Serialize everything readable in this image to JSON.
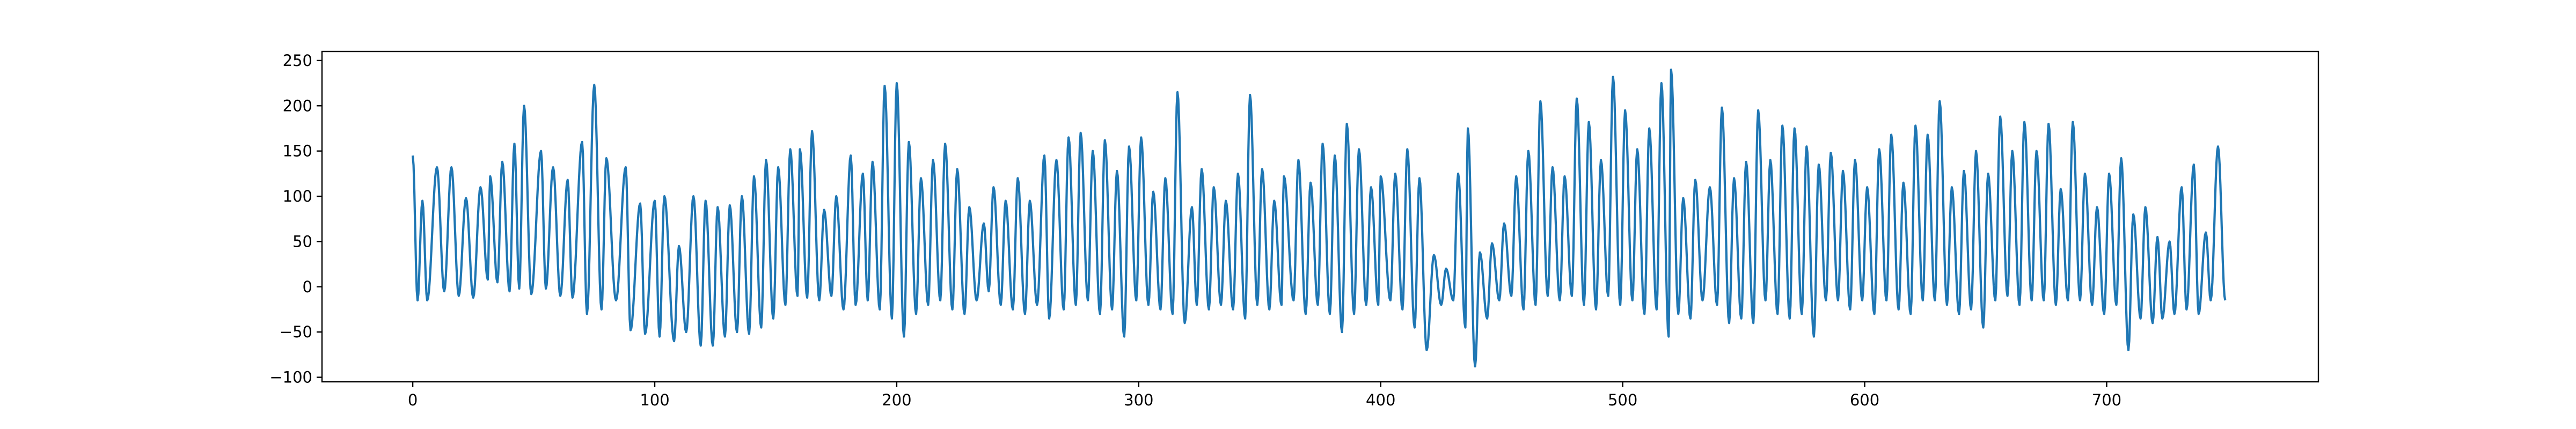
{
  "chart_data": {
    "type": "line",
    "title": "",
    "xlabel": "",
    "ylabel": "",
    "xlim": [
      -37.5,
      787.5
    ],
    "ylim": [
      -105,
      260
    ],
    "x_ticks": [
      0,
      100,
      200,
      300,
      400,
      500,
      600,
      700
    ],
    "y_ticks": [
      -100,
      -50,
      0,
      50,
      100,
      150,
      200,
      250
    ],
    "x_tick_labels": [
      "0",
      "100",
      "200",
      "300",
      "400",
      "500",
      "600",
      "700"
    ],
    "y_tick_labels": [
      "−100",
      "−50",
      "0",
      "50",
      "100",
      "150",
      "200",
      "250"
    ],
    "grid": false,
    "legend": "none",
    "series": [
      {
        "color": "#1f77b4",
        "x_start": 0,
        "x_end": 749,
        "peaks": [
          [
            0,
            145
          ],
          [
            4,
            95
          ],
          [
            10,
            132
          ],
          [
            16,
            132
          ],
          [
            22,
            98
          ],
          [
            28,
            110
          ],
          [
            32,
            122
          ],
          [
            37,
            138
          ],
          [
            42,
            158
          ],
          [
            46,
            200
          ],
          [
            53,
            150
          ],
          [
            58,
            132
          ],
          [
            64,
            118
          ],
          [
            70,
            160
          ],
          [
            75,
            223
          ],
          [
            80,
            142
          ],
          [
            88,
            132
          ],
          [
            94,
            92
          ],
          [
            100,
            95
          ],
          [
            104,
            100
          ],
          [
            110,
            45
          ],
          [
            116,
            100
          ],
          [
            121,
            95
          ],
          [
            126,
            88
          ],
          [
            131,
            90
          ],
          [
            136,
            100
          ],
          [
            141,
            122
          ],
          [
            146,
            140
          ],
          [
            151,
            132
          ],
          [
            156,
            152
          ],
          [
            160,
            152
          ],
          [
            165,
            172
          ],
          [
            170,
            85
          ],
          [
            175,
            100
          ],
          [
            181,
            145
          ],
          [
            186,
            125
          ],
          [
            190,
            138
          ],
          [
            195,
            222
          ],
          [
            200,
            225
          ],
          [
            205,
            160
          ],
          [
            210,
            120
          ],
          [
            215,
            140
          ],
          [
            220,
            158
          ],
          [
            225,
            130
          ],
          [
            230,
            88
          ],
          [
            236,
            70
          ],
          [
            240,
            110
          ],
          [
            245,
            95
          ],
          [
            250,
            120
          ],
          [
            255,
            95
          ],
          [
            261,
            145
          ],
          [
            266,
            140
          ],
          [
            271,
            165
          ],
          [
            276,
            170
          ],
          [
            281,
            150
          ],
          [
            286,
            162
          ],
          [
            291,
            128
          ],
          [
            296,
            155
          ],
          [
            301,
            165
          ],
          [
            306,
            105
          ],
          [
            311,
            120
          ],
          [
            316,
            215
          ],
          [
            322,
            88
          ],
          [
            326,
            130
          ],
          [
            331,
            110
          ],
          [
            336,
            95
          ],
          [
            341,
            125
          ],
          [
            346,
            212
          ],
          [
            351,
            130
          ],
          [
            356,
            95
          ],
          [
            360,
            122
          ],
          [
            366,
            140
          ],
          [
            371,
            115
          ],
          [
            376,
            158
          ],
          [
            381,
            145
          ],
          [
            386,
            180
          ],
          [
            391,
            152
          ],
          [
            396,
            110
          ],
          [
            400,
            122
          ],
          [
            406,
            125
          ],
          [
            411,
            152
          ],
          [
            416,
            120
          ],
          [
            422,
            35
          ],
          [
            427,
            20
          ],
          [
            432,
            125
          ],
          [
            436,
            175
          ],
          [
            441,
            38
          ],
          [
            446,
            48
          ],
          [
            451,
            70
          ],
          [
            456,
            122
          ],
          [
            461,
            150
          ],
          [
            466,
            205
          ],
          [
            471,
            132
          ],
          [
            476,
            122
          ],
          [
            481,
            208
          ],
          [
            486,
            182
          ],
          [
            491,
            140
          ],
          [
            496,
            232
          ],
          [
            501,
            195
          ],
          [
            506,
            152
          ],
          [
            511,
            175
          ],
          [
            516,
            225
          ],
          [
            520,
            240
          ],
          [
            525,
            98
          ],
          [
            530,
            118
          ],
          [
            536,
            110
          ],
          [
            541,
            198
          ],
          [
            546,
            120
          ],
          [
            551,
            138
          ],
          [
            556,
            195
          ],
          [
            561,
            140
          ],
          [
            566,
            178
          ],
          [
            571,
            175
          ],
          [
            576,
            155
          ],
          [
            581,
            135
          ],
          [
            586,
            148
          ],
          [
            591,
            128
          ],
          [
            596,
            140
          ],
          [
            601,
            110
          ],
          [
            606,
            152
          ],
          [
            611,
            168
          ],
          [
            616,
            115
          ],
          [
            621,
            178
          ],
          [
            626,
            168
          ],
          [
            631,
            205
          ],
          [
            636,
            110
          ],
          [
            641,
            128
          ],
          [
            646,
            150
          ],
          [
            651,
            125
          ],
          [
            656,
            188
          ],
          [
            661,
            150
          ],
          [
            666,
            182
          ],
          [
            671,
            150
          ],
          [
            676,
            180
          ],
          [
            681,
            108
          ],
          [
            686,
            182
          ],
          [
            691,
            125
          ],
          [
            696,
            88
          ],
          [
            701,
            125
          ],
          [
            706,
            142
          ],
          [
            711,
            80
          ],
          [
            716,
            88
          ],
          [
            721,
            55
          ],
          [
            726,
            50
          ],
          [
            731,
            110
          ],
          [
            736,
            135
          ],
          [
            741,
            60
          ],
          [
            746,
            155
          ]
        ],
        "troughs": [
          [
            2,
            -15
          ],
          [
            6,
            -15
          ],
          [
            13,
            -5
          ],
          [
            19,
            -10
          ],
          [
            25,
            -12
          ],
          [
            31,
            8
          ],
          [
            35,
            5
          ],
          [
            40,
            -5
          ],
          [
            44,
            -2
          ],
          [
            49,
            -8
          ],
          [
            55,
            -2
          ],
          [
            61,
            -10
          ],
          [
            66,
            -12
          ],
          [
            72,
            -30
          ],
          [
            78,
            -25
          ],
          [
            84,
            -15
          ],
          [
            90,
            -48
          ],
          [
            96,
            -52
          ],
          [
            102,
            -55
          ],
          [
            108,
            -60
          ],
          [
            113,
            -50
          ],
          [
            119,
            -65
          ],
          [
            124,
            -65
          ],
          [
            129,
            -55
          ],
          [
            134,
            -50
          ],
          [
            139,
            -52
          ],
          [
            144,
            -45
          ],
          [
            149,
            -35
          ],
          [
            154,
            -20
          ],
          [
            159,
            -10
          ],
          [
            163,
            -12
          ],
          [
            168,
            -15
          ],
          [
            173,
            -10
          ],
          [
            178,
            -25
          ],
          [
            183,
            -20
          ],
          [
            188,
            -15
          ],
          [
            193,
            -25
          ],
          [
            198,
            -35
          ],
          [
            203,
            -55
          ],
          [
            208,
            -30
          ],
          [
            213,
            -20
          ],
          [
            218,
            -15
          ],
          [
            223,
            -25
          ],
          [
            228,
            -30
          ],
          [
            233,
            -15
          ],
          [
            238,
            -5
          ],
          [
            243,
            -20
          ],
          [
            248,
            -25
          ],
          [
            253,
            -30
          ],
          [
            258,
            -20
          ],
          [
            263,
            -35
          ],
          [
            269,
            -25
          ],
          [
            274,
            -20
          ],
          [
            279,
            -15
          ],
          [
            284,
            -30
          ],
          [
            289,
            -25
          ],
          [
            294,
            -55
          ],
          [
            299,
            -15
          ],
          [
            304,
            -20
          ],
          [
            309,
            -25
          ],
          [
            314,
            -30
          ],
          [
            319,
            -40
          ],
          [
            324,
            -20
          ],
          [
            329,
            -25
          ],
          [
            334,
            -20
          ],
          [
            339,
            -25
          ],
          [
            344,
            -35
          ],
          [
            349,
            -20
          ],
          [
            354,
            -25
          ],
          [
            359,
            -20
          ],
          [
            364,
            -15
          ],
          [
            369,
            -30
          ],
          [
            374,
            -20
          ],
          [
            379,
            -30
          ],
          [
            384,
            -50
          ],
          [
            389,
            -30
          ],
          [
            394,
            -20
          ],
          [
            399,
            -20
          ],
          [
            404,
            -15
          ],
          [
            409,
            -25
          ],
          [
            414,
            -45
          ],
          [
            419,
            -70
          ],
          [
            425,
            -20
          ],
          [
            430,
            -15
          ],
          [
            435,
            -45
          ],
          [
            439,
            -88
          ],
          [
            444,
            -35
          ],
          [
            449,
            -15
          ],
          [
            454,
            -10
          ],
          [
            459,
            -25
          ],
          [
            464,
            -20
          ],
          [
            469,
            -10
          ],
          [
            474,
            -15
          ],
          [
            479,
            -10
          ],
          [
            484,
            -20
          ],
          [
            489,
            -25
          ],
          [
            494,
            -10
          ],
          [
            499,
            -20
          ],
          [
            504,
            -15
          ],
          [
            509,
            -30
          ],
          [
            514,
            -25
          ],
          [
            519,
            -55
          ],
          [
            523,
            -30
          ],
          [
            528,
            -35
          ],
          [
            533,
            -15
          ],
          [
            539,
            -20
          ],
          [
            544,
            -40
          ],
          [
            549,
            -35
          ],
          [
            554,
            -40
          ],
          [
            559,
            -15
          ],
          [
            564,
            -30
          ],
          [
            569,
            -35
          ],
          [
            574,
            -30
          ],
          [
            579,
            -55
          ],
          [
            584,
            -15
          ],
          [
            589,
            -15
          ],
          [
            594,
            -25
          ],
          [
            599,
            -15
          ],
          [
            604,
            -30
          ],
          [
            609,
            -15
          ],
          [
            614,
            -25
          ],
          [
            619,
            -30
          ],
          [
            624,
            -15
          ],
          [
            629,
            -15
          ],
          [
            634,
            -20
          ],
          [
            639,
            -30
          ],
          [
            644,
            -25
          ],
          [
            649,
            -45
          ],
          [
            654,
            -15
          ],
          [
            659,
            -10
          ],
          [
            664,
            -20
          ],
          [
            669,
            -15
          ],
          [
            674,
            -15
          ],
          [
            679,
            -20
          ],
          [
            684,
            -15
          ],
          [
            689,
            -15
          ],
          [
            694,
            -20
          ],
          [
            699,
            -30
          ],
          [
            704,
            -20
          ],
          [
            709,
            -70
          ],
          [
            714,
            -35
          ],
          [
            719,
            -40
          ],
          [
            723,
            -35
          ],
          [
            728,
            -30
          ],
          [
            733,
            -25
          ],
          [
            738,
            -30
          ],
          [
            743,
            -15
          ],
          [
            749,
            -15
          ]
        ]
      }
    ]
  }
}
